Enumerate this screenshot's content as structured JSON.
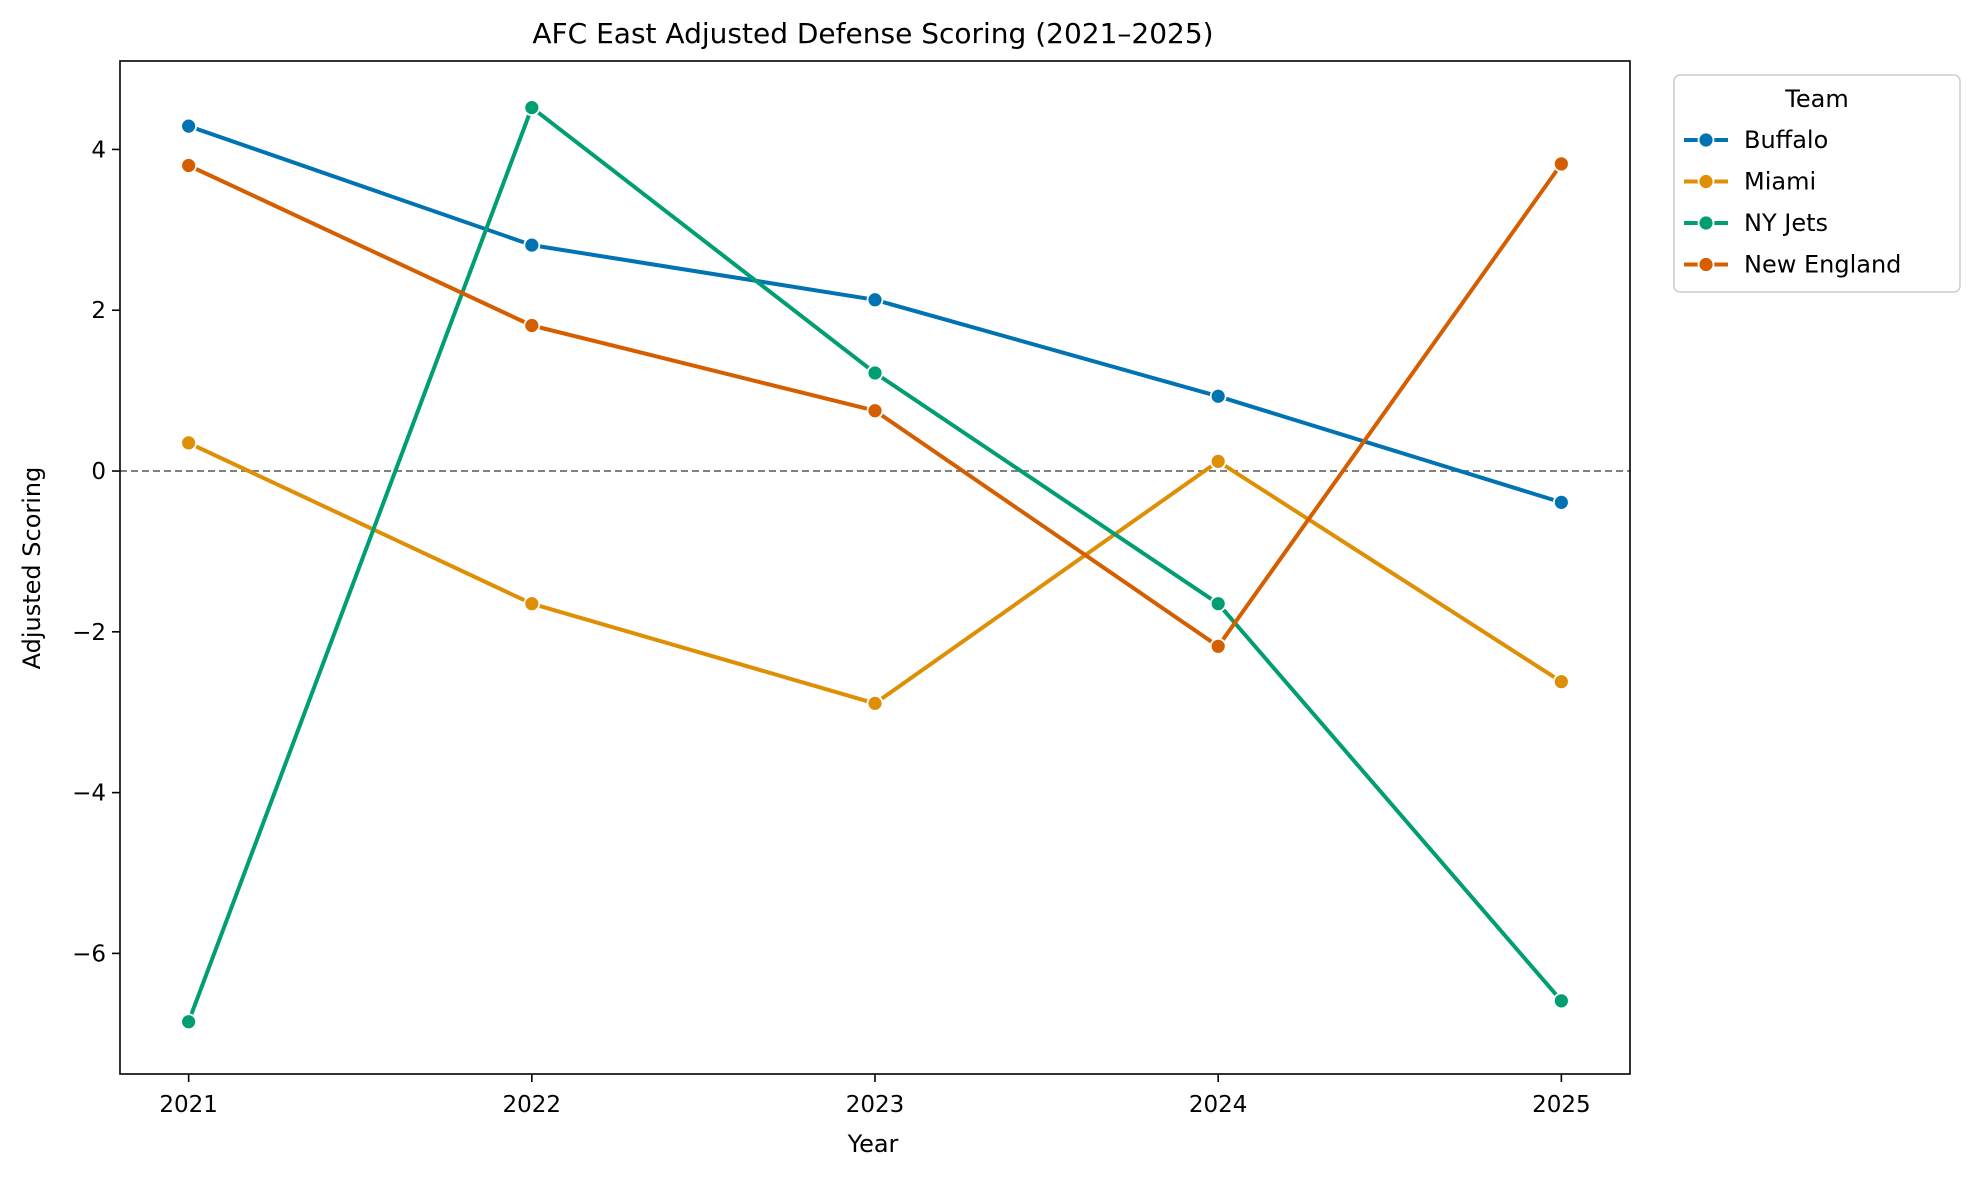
{
  "chart_data": {
    "type": "line",
    "title": "AFC East Adjusted Defense Scoring (2021–2025)",
    "xlabel": "Year",
    "ylabel": "Adjusted Scoring",
    "x": [
      2021,
      2022,
      2023,
      2024,
      2025
    ],
    "x_tick_labels": [
      "2021",
      "2022",
      "2023",
      "2024",
      "2025"
    ],
    "xlim": [
      2020.8,
      2025.2
    ],
    "ylim": [
      -7.5,
      5.1
    ],
    "y_ticks": [
      -6,
      -4,
      -2,
      0,
      2,
      4
    ],
    "y_tick_labels": [
      "−6",
      "−4",
      "−2",
      "0",
      "2",
      "4"
    ],
    "reference_line": {
      "y": 0,
      "style": "dashed",
      "color": "#808080"
    },
    "grid": false,
    "legend": {
      "title": "Team",
      "placement": "outside-top-right"
    },
    "series": [
      {
        "name": "Buffalo",
        "color": "#0173b2",
        "values": [
          4.29,
          2.81,
          2.13,
          0.93,
          -0.39
        ]
      },
      {
        "name": "Miami",
        "color": "#de8f05",
        "values": [
          0.35,
          -1.65,
          -2.89,
          0.12,
          -2.62
        ]
      },
      {
        "name": "NY Jets",
        "color": "#029e73",
        "values": [
          -6.85,
          4.52,
          1.22,
          -1.65,
          -6.59
        ]
      },
      {
        "name": "New England",
        "color": "#d55e00",
        "values": [
          3.8,
          1.81,
          0.75,
          -2.18,
          3.82
        ]
      }
    ]
  }
}
